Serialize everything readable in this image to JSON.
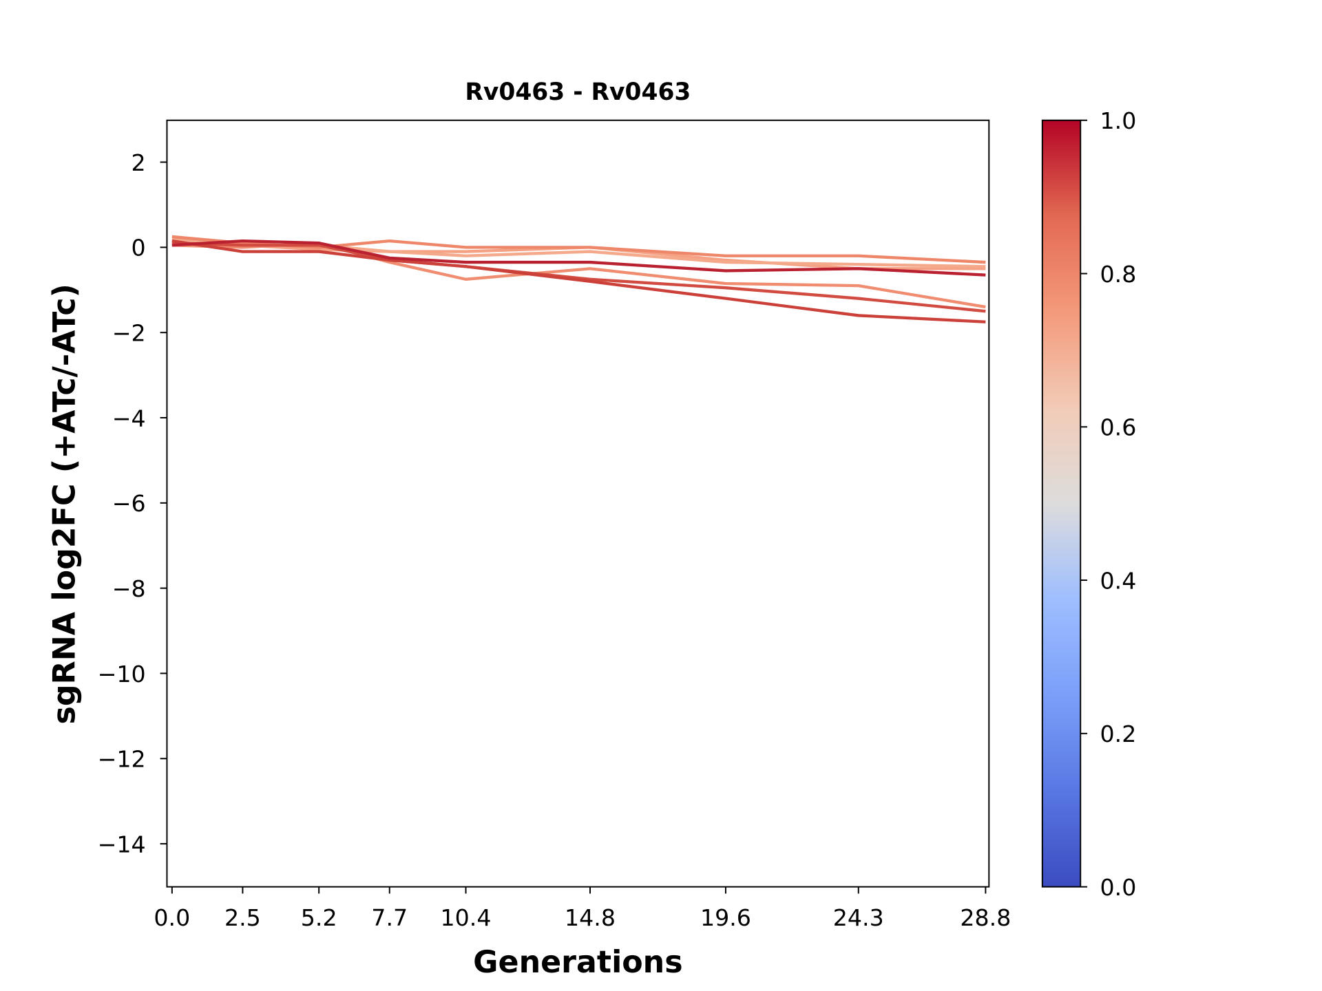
{
  "chart_data": {
    "type": "line",
    "title": "Rv0463 - Rv0463",
    "xlabel": "Generations",
    "ylabel": "sgRNA log2FC (+ATc/-ATc)",
    "x": [
      0.0,
      2.5,
      5.2,
      7.7,
      10.4,
      14.8,
      19.6,
      24.3,
      28.8
    ],
    "x_tick_labels": [
      "0.0",
      "2.5",
      "5.2",
      "7.7",
      "10.4",
      "14.8",
      "19.6",
      "24.3",
      "28.8"
    ],
    "ylim": [
      -15,
      3
    ],
    "y_ticks": [
      2,
      0,
      -2,
      -4,
      -6,
      -8,
      -10,
      -12,
      -14
    ],
    "y_tick_labels": [
      "2",
      "0",
      "−2",
      "−4",
      "−6",
      "−8",
      "−10",
      "−12",
      "−14"
    ],
    "grid": false,
    "series": [
      {
        "colorvalue": 0.72,
        "color": "#f4a283",
        "values": [
          0.1,
          0.05,
          -0.05,
          -0.1,
          -0.1,
          0.0,
          -0.3,
          -0.5,
          -0.5
        ]
      },
      {
        "colorvalue": 0.7,
        "color": "#f5a98b",
        "values": [
          0.2,
          0.05,
          0.05,
          -0.1,
          -0.2,
          -0.1,
          -0.35,
          -0.4,
          -0.45
        ]
      },
      {
        "colorvalue": 0.78,
        "color": "#ee8669",
        "values": [
          0.25,
          0.1,
          0.0,
          0.15,
          0.0,
          0.0,
          -0.2,
          -0.2,
          -0.35
        ]
      },
      {
        "colorvalue": 0.76,
        "color": "#f08c70",
        "values": [
          0.05,
          0.0,
          0.1,
          -0.35,
          -0.75,
          -0.5,
          -0.85,
          -0.9,
          -1.4
        ]
      },
      {
        "colorvalue": 0.88,
        "color": "#d24b40",
        "values": [
          0.1,
          0.05,
          0.05,
          -0.3,
          -0.45,
          -0.75,
          -0.95,
          -1.2,
          -1.5
        ]
      },
      {
        "colorvalue": 0.9,
        "color": "#cc403a",
        "values": [
          0.15,
          -0.1,
          -0.1,
          -0.3,
          -0.45,
          -0.8,
          -1.2,
          -1.6,
          -1.75
        ]
      },
      {
        "colorvalue": 0.98,
        "color": "#ba2130",
        "values": [
          0.05,
          0.15,
          0.1,
          -0.25,
          -0.35,
          -0.35,
          -0.55,
          -0.5,
          -0.65
        ]
      }
    ],
    "colorbar": {
      "colormap": "coolwarm",
      "range": [
        0.0,
        1.0
      ],
      "tick_labels": [
        "0.0",
        "0.2",
        "0.4",
        "0.6",
        "0.8",
        "1.0"
      ]
    }
  }
}
